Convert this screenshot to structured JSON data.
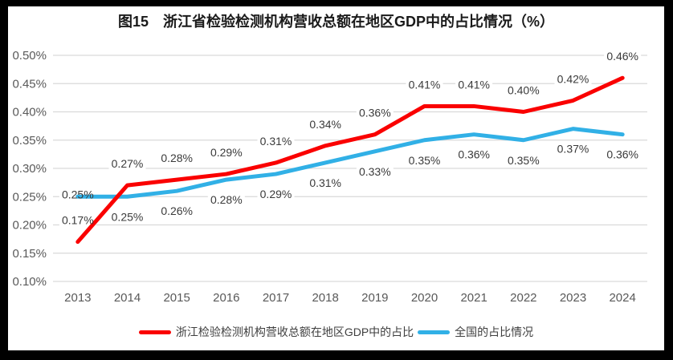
{
  "title": "图15　浙江省检验检测机构营收总额在地区GDP中的占比情况（%）",
  "chart_data": {
    "type": "line",
    "x": [
      "2013",
      "2014",
      "2015",
      "2016",
      "2017",
      "2018",
      "2019",
      "2020",
      "2021",
      "2022",
      "2023",
      "2024"
    ],
    "ylim": [
      0.1,
      0.5
    ],
    "ytick_step": 0.05,
    "ytick_labels": [
      "0.50%",
      "0.45%",
      "0.40%",
      "0.35%",
      "0.30%",
      "0.25%",
      "0.20%",
      "0.15%",
      "0.10%"
    ],
    "grid": true,
    "legend_position": "bottom",
    "series": [
      {
        "name": "浙江检验检测机构营收总额在地区GDP中的占比",
        "color": "#FA0000",
        "values": [
          0.17,
          0.27,
          0.28,
          0.29,
          0.31,
          0.34,
          0.36,
          0.41,
          0.41,
          0.4,
          0.42,
          0.46
        ],
        "labels": [
          "0.17%",
          "0.27%",
          "0.28%",
          "0.29%",
          "0.31%",
          "0.34%",
          "0.36%",
          "0.41%",
          "0.41%",
          "0.40%",
          "0.42%",
          "0.46%"
        ]
      },
      {
        "name": "全国的占比情况",
        "color": "#31B0E6",
        "values": [
          0.25,
          0.25,
          0.26,
          0.28,
          0.29,
          0.31,
          0.33,
          0.35,
          0.36,
          0.35,
          0.37,
          0.36
        ],
        "labels": [
          "0.25%",
          "0.25%",
          "0.26%",
          "0.28%",
          "0.29%",
          "0.31%",
          "0.33%",
          "0.35%",
          "0.36%",
          "0.35%",
          "0.37%",
          "0.36%"
        ]
      }
    ],
    "colors": {
      "grid": "#D9D9D9",
      "axis_text": "#595959",
      "label_text": "#3A3A3A",
      "background": "#FFFFFF"
    }
  }
}
